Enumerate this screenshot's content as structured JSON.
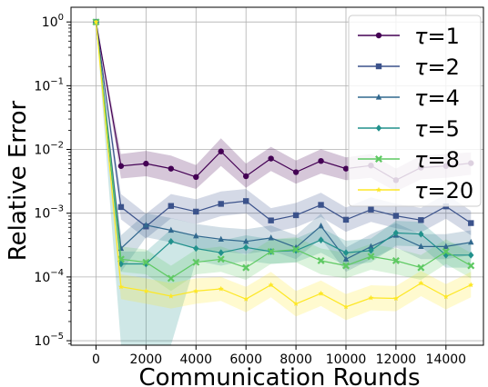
{
  "chart_data": {
    "type": "line",
    "title": "",
    "xlabel": "Communication Rounds",
    "ylabel": "Relative Error",
    "yscale": "log",
    "xlim": [
      -1000,
      15500
    ],
    "ylim": [
      8.5e-06,
      1.7
    ],
    "xticks": [
      0,
      2000,
      4000,
      6000,
      8000,
      10000,
      12000,
      14000
    ],
    "xtick_labels": [
      "0",
      "2000",
      "4000",
      "6000",
      "8000",
      "10000",
      "12000",
      "14000"
    ],
    "yticks": [
      1e-05,
      0.0001,
      0.001,
      0.01,
      0.1,
      1
    ],
    "ytick_labels": [
      {
        "base": "10",
        "exp": "−5"
      },
      {
        "base": "10",
        "exp": "−4"
      },
      {
        "base": "10",
        "exp": "−3"
      },
      {
        "base": "10",
        "exp": "−2"
      },
      {
        "base": "10",
        "exp": "−1"
      },
      {
        "base": "10",
        "exp": "0"
      }
    ],
    "grid": true,
    "legend_position": "top-right",
    "x": [
      0,
      1000,
      2000,
      3000,
      4000,
      5000,
      6000,
      7000,
      8000,
      9000,
      10000,
      11000,
      12000,
      13000,
      14000,
      15000
    ],
    "series": [
      {
        "name": "τ=1",
        "symbol": "τ",
        "suffix": "=1",
        "color": "#440154",
        "marker": "circle",
        "values": [
          1.0,
          0.0055,
          0.006,
          0.005,
          0.0037,
          0.0093,
          0.0038,
          0.0072,
          0.0044,
          0.0066,
          0.005,
          0.0056,
          0.0033,
          0.0052,
          0.0055,
          0.0061
        ],
        "lower": [
          1.0,
          0.0035,
          0.0038,
          0.0031,
          0.0024,
          0.0055,
          0.0025,
          0.0046,
          0.0029,
          0.0042,
          0.0033,
          0.0036,
          0.0022,
          0.0034,
          0.0036,
          0.004
        ],
        "upper": [
          1.0,
          0.0085,
          0.0095,
          0.008,
          0.0057,
          0.015,
          0.006,
          0.011,
          0.0067,
          0.0101,
          0.0075,
          0.0085,
          0.005,
          0.008,
          0.0085,
          0.009
        ]
      },
      {
        "name": "τ=2",
        "symbol": "τ",
        "suffix": "=2",
        "color": "#3b528b",
        "marker": "square",
        "values": [
          1.0,
          0.00125,
          0.00062,
          0.0013,
          0.00106,
          0.0014,
          0.00155,
          0.00077,
          0.00093,
          0.00135,
          0.00079,
          0.00114,
          0.00091,
          0.00078,
          0.00128,
          0.0007
        ],
        "lower": [
          1.0,
          0.0008,
          0.0004,
          0.00083,
          0.00068,
          0.0009,
          0.001,
          0.0005,
          0.0006,
          0.00087,
          0.00051,
          0.00073,
          0.00058,
          0.0005,
          0.00082,
          0.00045
        ],
        "upper": [
          1.0,
          0.002,
          0.00098,
          0.002,
          0.00165,
          0.0022,
          0.0024,
          0.0012,
          0.00145,
          0.0021,
          0.00123,
          0.00177,
          0.00141,
          0.00121,
          0.002,
          0.00109
        ]
      },
      {
        "name": "τ=4",
        "symbol": "τ",
        "suffix": "=4",
        "color": "#31688e",
        "marker": "triangle",
        "values": [
          1.0,
          0.00028,
          0.00065,
          0.00054,
          0.00044,
          0.00039,
          0.00036,
          0.00041,
          0.00029,
          0.00063,
          0.00019,
          0.0003,
          0.00045,
          0.0003,
          0.0003,
          0.00035
        ],
        "lower": [
          1.0,
          0.00012,
          0.00042,
          0.00035,
          0.00028,
          0.00025,
          0.00023,
          0.00026,
          0.00019,
          0.0004,
          0.00012,
          0.00019,
          0.00029,
          0.00019,
          0.00019,
          0.00022
        ],
        "upper": [
          1.0,
          0.00045,
          0.001,
          0.00084,
          0.00068,
          0.0006,
          0.00056,
          0.00064,
          0.00045,
          0.00098,
          0.00029,
          0.00047,
          0.0007,
          0.00047,
          0.00047,
          0.00054
        ]
      },
      {
        "name": "τ=5",
        "symbol": "τ",
        "suffix": "=5",
        "color": "#21918c",
        "marker": "diamond",
        "values": [
          1.0,
          0.00016,
          0.00016,
          0.00036,
          0.00028,
          0.00024,
          0.00029,
          0.00025,
          0.00026,
          0.00038,
          0.00024,
          0.00026,
          0.00049,
          0.00047,
          0.00022,
          0.00022
        ],
        "lower": [
          1.0,
          8.5e-06,
          8.5e-06,
          8.5e-06,
          0.00018,
          0.00015,
          0.00018,
          0.00016,
          0.00017,
          0.00024,
          0.00015,
          0.00017,
          0.00031,
          0.0003,
          0.00014,
          0.00014
        ],
        "upper": [
          1.0,
          0.00025,
          0.00025,
          0.00056,
          0.00044,
          0.00037,
          0.00045,
          0.00039,
          0.0004,
          0.00059,
          0.00037,
          0.0004,
          0.00076,
          0.00073,
          0.00034,
          0.00034
        ]
      },
      {
        "name": "τ=8",
        "symbol": "τ",
        "suffix": "=8",
        "color": "#5ec962",
        "marker": "x",
        "values": [
          1.0,
          0.00019,
          0.00017,
          9.5e-05,
          0.00017,
          0.00019,
          0.00014,
          0.00025,
          0.00027,
          0.00018,
          0.00015,
          0.00021,
          0.00018,
          0.00014,
          0.00025,
          0.00015
        ],
        "lower": [
          1.0,
          0.00012,
          0.00011,
          6e-05,
          0.00011,
          0.00012,
          9e-05,
          0.00016,
          0.00017,
          0.00011,
          9.5e-05,
          0.00013,
          0.00011,
          9e-05,
          0.00016,
          9.5e-05
        ],
        "upper": [
          1.0,
          0.0003,
          0.00027,
          0.00015,
          0.00027,
          0.0003,
          0.00022,
          0.00039,
          0.00042,
          0.00028,
          0.00024,
          0.00033,
          0.00028,
          0.00022,
          0.00039,
          0.00024
        ]
      },
      {
        "name": "τ=20",
        "symbol": "τ",
        "suffix": "=20",
        "color": "#fde725",
        "marker": "star",
        "values": [
          1.0,
          7e-05,
          6e-05,
          5e-05,
          6e-05,
          6.5e-05,
          4.5e-05,
          7.5e-05,
          3.8e-05,
          5.5e-05,
          3.4e-05,
          4.7e-05,
          4.6e-05,
          8e-05,
          4.9e-05,
          7.5e-05
        ],
        "lower": [
          1.0,
          4.5e-05,
          3.8e-05,
          3.2e-05,
          3.8e-05,
          4.2e-05,
          2.8e-05,
          4.8e-05,
          2.4e-05,
          3.5e-05,
          2.1e-05,
          3e-05,
          2.9e-05,
          5e-05,
          3.1e-05,
          4.8e-05
        ],
        "upper": [
          1.0,
          0.00011,
          9.5e-05,
          8e-05,
          9.5e-05,
          0.0001,
          7e-05,
          0.00012,
          6e-05,
          8.8e-05,
          5.4e-05,
          7.4e-05,
          7.2e-05,
          0.000125,
          7.7e-05,
          0.00012
        ]
      }
    ]
  }
}
